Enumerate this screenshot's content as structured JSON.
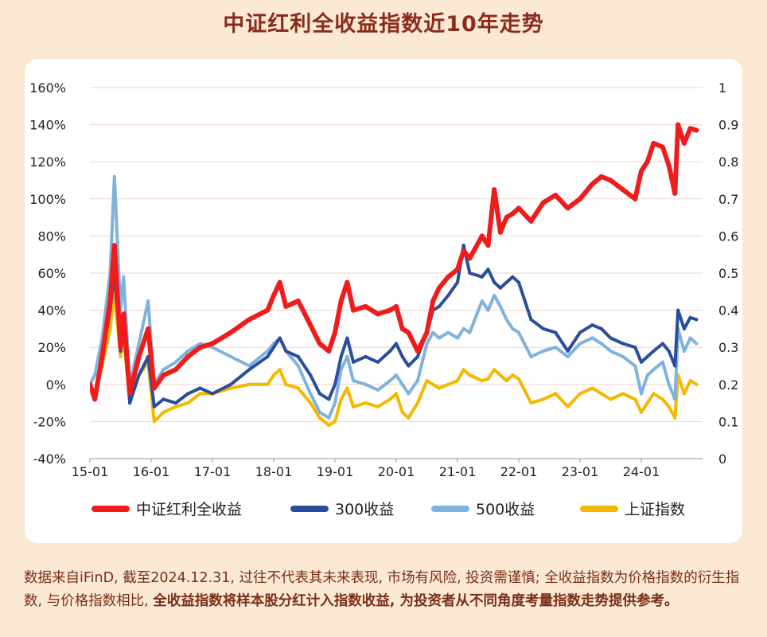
{
  "title": "中证红利全收益指数近10年走势",
  "footnote": {
    "part1": "数据来自iFinD, 截至2024.12.31, 过往不代表其未来表现, 市场有风险, 投资需谨慎; 全收益指数为价格指数的衍生指数, 与价格指数相比, ",
    "bold": "全收益指数将样本股分红计入指数收益, 为投资者从不同角度考量指数走势提供参考。"
  },
  "chart_data": {
    "type": "line",
    "x_ticks": [
      "15-01",
      "16-01",
      "17-01",
      "18-01",
      "19-01",
      "20-01",
      "21-01",
      "22-01",
      "23-01",
      "24-01"
    ],
    "y_left": {
      "min": -40,
      "max": 160,
      "step": 20,
      "unit": "%",
      "ticks": [
        "160%",
        "140%",
        "120%",
        "100%",
        "80%",
        "60%",
        "40%",
        "20%",
        "0%",
        "-20%",
        "-40%"
      ]
    },
    "y_right": {
      "min": 0,
      "max": 1,
      "ticks": [
        "1",
        "0.9",
        "0.8",
        "0.7",
        "0.6",
        "0.5",
        "0.4",
        "0.3",
        "0.2",
        "0.1",
        "0"
      ]
    },
    "grid": true,
    "legend_position": "bottom",
    "series": [
      {
        "name": "中证红利全收益",
        "color": "#ee1c1c",
        "points": [
          [
            2015.0,
            0
          ],
          [
            2015.08,
            -8
          ],
          [
            2015.2,
            15
          ],
          [
            2015.33,
            45
          ],
          [
            2015.4,
            75
          ],
          [
            2015.5,
            20
          ],
          [
            2015.55,
            38
          ],
          [
            2015.65,
            -5
          ],
          [
            2015.8,
            15
          ],
          [
            2015.95,
            30
          ],
          [
            2016.05,
            -2
          ],
          [
            2016.2,
            5
          ],
          [
            2016.4,
            8
          ],
          [
            2016.6,
            15
          ],
          [
            2016.8,
            20
          ],
          [
            2017.0,
            22
          ],
          [
            2017.3,
            28
          ],
          [
            2017.6,
            35
          ],
          [
            2017.9,
            40
          ],
          [
            2018.0,
            48
          ],
          [
            2018.1,
            55
          ],
          [
            2018.2,
            42
          ],
          [
            2018.4,
            45
          ],
          [
            2018.6,
            32
          ],
          [
            2018.75,
            22
          ],
          [
            2018.9,
            18
          ],
          [
            2019.0,
            28
          ],
          [
            2019.1,
            45
          ],
          [
            2019.2,
            55
          ],
          [
            2019.3,
            40
          ],
          [
            2019.5,
            42
          ],
          [
            2019.7,
            38
          ],
          [
            2019.9,
            40
          ],
          [
            2020.0,
            42
          ],
          [
            2020.1,
            30
          ],
          [
            2020.2,
            28
          ],
          [
            2020.35,
            18
          ],
          [
            2020.5,
            28
          ],
          [
            2020.6,
            45
          ],
          [
            2020.7,
            52
          ],
          [
            2020.85,
            58
          ],
          [
            2021.0,
            62
          ],
          [
            2021.1,
            72
          ],
          [
            2021.2,
            68
          ],
          [
            2021.4,
            80
          ],
          [
            2021.5,
            75
          ],
          [
            2021.6,
            105
          ],
          [
            2021.7,
            82
          ],
          [
            2021.8,
            90
          ],
          [
            2021.9,
            92
          ],
          [
            2022.0,
            95
          ],
          [
            2022.2,
            88
          ],
          [
            2022.4,
            98
          ],
          [
            2022.6,
            102
          ],
          [
            2022.8,
            95
          ],
          [
            2023.0,
            100
          ],
          [
            2023.2,
            108
          ],
          [
            2023.35,
            112
          ],
          [
            2023.5,
            110
          ],
          [
            2023.7,
            105
          ],
          [
            2023.9,
            100
          ],
          [
            2024.0,
            115
          ],
          [
            2024.1,
            120
          ],
          [
            2024.2,
            130
          ],
          [
            2024.35,
            128
          ],
          [
            2024.45,
            118
          ],
          [
            2024.55,
            103
          ],
          [
            2024.6,
            140
          ],
          [
            2024.7,
            130
          ],
          [
            2024.8,
            138
          ],
          [
            2024.9,
            137
          ]
        ]
      },
      {
        "name": "300收益",
        "color": "#2b4d9e",
        "points": [
          [
            2015.0,
            0
          ],
          [
            2015.08,
            -5
          ],
          [
            2015.2,
            15
          ],
          [
            2015.33,
            40
          ],
          [
            2015.4,
            60
          ],
          [
            2015.5,
            18
          ],
          [
            2015.55,
            32
          ],
          [
            2015.65,
            -10
          ],
          [
            2015.8,
            5
          ],
          [
            2015.95,
            15
          ],
          [
            2016.05,
            -12
          ],
          [
            2016.2,
            -8
          ],
          [
            2016.4,
            -10
          ],
          [
            2016.6,
            -5
          ],
          [
            2016.8,
            -2
          ],
          [
            2017.0,
            -5
          ],
          [
            2017.3,
            0
          ],
          [
            2017.6,
            8
          ],
          [
            2017.9,
            15
          ],
          [
            2018.0,
            20
          ],
          [
            2018.1,
            25
          ],
          [
            2018.2,
            18
          ],
          [
            2018.4,
            15
          ],
          [
            2018.6,
            5
          ],
          [
            2018.75,
            -5
          ],
          [
            2018.9,
            -8
          ],
          [
            2019.0,
            0
          ],
          [
            2019.1,
            15
          ],
          [
            2019.2,
            25
          ],
          [
            2019.3,
            12
          ],
          [
            2019.5,
            15
          ],
          [
            2019.7,
            12
          ],
          [
            2019.9,
            18
          ],
          [
            2020.0,
            22
          ],
          [
            2020.1,
            15
          ],
          [
            2020.2,
            10
          ],
          [
            2020.35,
            15
          ],
          [
            2020.5,
            28
          ],
          [
            2020.6,
            40
          ],
          [
            2020.7,
            42
          ],
          [
            2020.85,
            48
          ],
          [
            2021.0,
            55
          ],
          [
            2021.1,
            75
          ],
          [
            2021.2,
            60
          ],
          [
            2021.4,
            58
          ],
          [
            2021.5,
            62
          ],
          [
            2021.6,
            55
          ],
          [
            2021.7,
            52
          ],
          [
            2021.8,
            55
          ],
          [
            2021.9,
            58
          ],
          [
            2022.0,
            55
          ],
          [
            2022.2,
            35
          ],
          [
            2022.4,
            30
          ],
          [
            2022.6,
            28
          ],
          [
            2022.8,
            18
          ],
          [
            2023.0,
            28
          ],
          [
            2023.2,
            32
          ],
          [
            2023.35,
            30
          ],
          [
            2023.5,
            25
          ],
          [
            2023.7,
            22
          ],
          [
            2023.9,
            20
          ],
          [
            2024.0,
            12
          ],
          [
            2024.1,
            15
          ],
          [
            2024.2,
            18
          ],
          [
            2024.35,
            22
          ],
          [
            2024.45,
            18
          ],
          [
            2024.55,
            10
          ],
          [
            2024.6,
            40
          ],
          [
            2024.7,
            30
          ],
          [
            2024.8,
            36
          ],
          [
            2024.9,
            35
          ]
        ]
      },
      {
        "name": "500收益",
        "color": "#7fb3de",
        "points": [
          [
            2015.0,
            0
          ],
          [
            2015.08,
            5
          ],
          [
            2015.2,
            25
          ],
          [
            2015.33,
            60
          ],
          [
            2015.4,
            112
          ],
          [
            2015.5,
            40
          ],
          [
            2015.55,
            58
          ],
          [
            2015.65,
            0
          ],
          [
            2015.8,
            22
          ],
          [
            2015.95,
            45
          ],
          [
            2016.05,
            0
          ],
          [
            2016.2,
            8
          ],
          [
            2016.4,
            12
          ],
          [
            2016.6,
            18
          ],
          [
            2016.8,
            22
          ],
          [
            2017.0,
            20
          ],
          [
            2017.3,
            15
          ],
          [
            2017.6,
            10
          ],
          [
            2017.9,
            18
          ],
          [
            2018.0,
            22
          ],
          [
            2018.1,
            25
          ],
          [
            2018.2,
            18
          ],
          [
            2018.4,
            10
          ],
          [
            2018.6,
            -5
          ],
          [
            2018.75,
            -15
          ],
          [
            2018.9,
            -18
          ],
          [
            2019.0,
            -10
          ],
          [
            2019.1,
            8
          ],
          [
            2019.2,
            15
          ],
          [
            2019.3,
            2
          ],
          [
            2019.5,
            0
          ],
          [
            2019.7,
            -3
          ],
          [
            2019.9,
            2
          ],
          [
            2020.0,
            5
          ],
          [
            2020.1,
            0
          ],
          [
            2020.2,
            -5
          ],
          [
            2020.35,
            2
          ],
          [
            2020.5,
            22
          ],
          [
            2020.6,
            28
          ],
          [
            2020.7,
            25
          ],
          [
            2020.85,
            28
          ],
          [
            2021.0,
            25
          ],
          [
            2021.1,
            30
          ],
          [
            2021.2,
            28
          ],
          [
            2021.4,
            45
          ],
          [
            2021.5,
            40
          ],
          [
            2021.6,
            48
          ],
          [
            2021.7,
            42
          ],
          [
            2021.8,
            35
          ],
          [
            2021.9,
            30
          ],
          [
            2022.0,
            28
          ],
          [
            2022.2,
            15
          ],
          [
            2022.4,
            18
          ],
          [
            2022.6,
            20
          ],
          [
            2022.8,
            15
          ],
          [
            2023.0,
            22
          ],
          [
            2023.2,
            25
          ],
          [
            2023.35,
            22
          ],
          [
            2023.5,
            18
          ],
          [
            2023.7,
            15
          ],
          [
            2023.9,
            10
          ],
          [
            2024.0,
            -5
          ],
          [
            2024.1,
            5
          ],
          [
            2024.2,
            8
          ],
          [
            2024.35,
            12
          ],
          [
            2024.45,
            0
          ],
          [
            2024.55,
            -8
          ],
          [
            2024.6,
            30
          ],
          [
            2024.7,
            18
          ],
          [
            2024.8,
            25
          ],
          [
            2024.9,
            22
          ]
        ]
      },
      {
        "name": "上证指数",
        "color": "#f5b800",
        "points": [
          [
            2015.0,
            0
          ],
          [
            2015.08,
            -5
          ],
          [
            2015.2,
            10
          ],
          [
            2015.33,
            30
          ],
          [
            2015.4,
            50
          ],
          [
            2015.5,
            15
          ],
          [
            2015.55,
            25
          ],
          [
            2015.65,
            -8
          ],
          [
            2015.8,
            5
          ],
          [
            2015.95,
            12
          ],
          [
            2016.05,
            -20
          ],
          [
            2016.2,
            -15
          ],
          [
            2016.4,
            -12
          ],
          [
            2016.6,
            -10
          ],
          [
            2016.8,
            -5
          ],
          [
            2017.0,
            -5
          ],
          [
            2017.3,
            -2
          ],
          [
            2017.6,
            0
          ],
          [
            2017.9,
            0
          ],
          [
            2018.0,
            5
          ],
          [
            2018.1,
            8
          ],
          [
            2018.2,
            0
          ],
          [
            2018.4,
            -2
          ],
          [
            2018.6,
            -10
          ],
          [
            2018.75,
            -18
          ],
          [
            2018.9,
            -22
          ],
          [
            2019.0,
            -20
          ],
          [
            2019.1,
            -8
          ],
          [
            2019.2,
            -2
          ],
          [
            2019.3,
            -12
          ],
          [
            2019.5,
            -10
          ],
          [
            2019.7,
            -12
          ],
          [
            2019.9,
            -8
          ],
          [
            2020.0,
            -5
          ],
          [
            2020.1,
            -15
          ],
          [
            2020.2,
            -18
          ],
          [
            2020.35,
            -10
          ],
          [
            2020.5,
            2
          ],
          [
            2020.6,
            0
          ],
          [
            2020.7,
            -2
          ],
          [
            2020.85,
            0
          ],
          [
            2021.0,
            2
          ],
          [
            2021.1,
            8
          ],
          [
            2021.2,
            5
          ],
          [
            2021.4,
            2
          ],
          [
            2021.5,
            3
          ],
          [
            2021.6,
            8
          ],
          [
            2021.7,
            5
          ],
          [
            2021.8,
            2
          ],
          [
            2021.9,
            5
          ],
          [
            2022.0,
            3
          ],
          [
            2022.2,
            -10
          ],
          [
            2022.4,
            -8
          ],
          [
            2022.6,
            -5
          ],
          [
            2022.8,
            -12
          ],
          [
            2023.0,
            -5
          ],
          [
            2023.2,
            -2
          ],
          [
            2023.35,
            -5
          ],
          [
            2023.5,
            -8
          ],
          [
            2023.7,
            -5
          ],
          [
            2023.9,
            -8
          ],
          [
            2024.0,
            -15
          ],
          [
            2024.1,
            -10
          ],
          [
            2024.2,
            -5
          ],
          [
            2024.35,
            -8
          ],
          [
            2024.45,
            -12
          ],
          [
            2024.55,
            -18
          ],
          [
            2024.6,
            5
          ],
          [
            2024.7,
            -5
          ],
          [
            2024.8,
            2
          ],
          [
            2024.9,
            0
          ]
        ]
      }
    ]
  }
}
